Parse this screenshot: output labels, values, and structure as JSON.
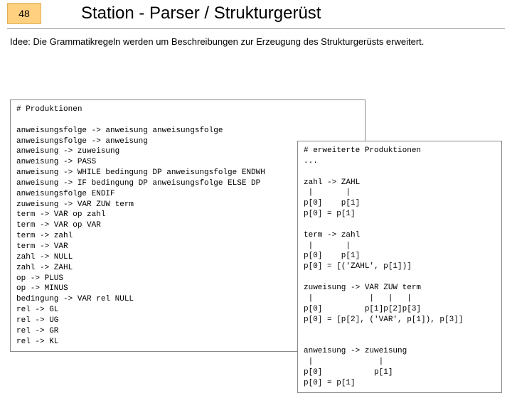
{
  "slide_number": "48",
  "title": "Station - Parser / Strukturgerüst",
  "intro": "Idee: Die Grammatikregeln werden um Beschreibungen zur Erzeugung des Strukturgerüsts erweitert.",
  "left_code": "# Produktionen\n\nanweisungsfolge -> anweisung anweisungsfolge\nanweisungsfolge -> anweisung\nanweisung -> zuweisung\nanweisung -> PASS\nanweisung -> WHILE bedingung DP anweisungsfolge ENDWH\nanweisung -> IF bedingung DP anweisungsfolge ELSE DP\nanweisungsfolge ENDIF\nzuweisung -> VAR ZUW term\nterm -> VAR op zahl\nterm -> VAR op VAR\nterm -> zahl\nterm -> VAR\nzahl -> NULL\nzahl -> ZAHL\nop -> PLUS\nop -> MINUS\nbedingung -> VAR rel NULL\nrel -> GL\nrel -> UG\nrel -> GR\nrel -> KL",
  "right_code": "# erweiterte Produktionen\n...\n\nzahl -> ZAHL\n |       |\np[0]    p[1]\np[0] = p[1]\n\nterm -> zahl\n |       |\np[0]    p[1]\np[0] = [('ZAHL', p[1])]\n\nzuweisung -> VAR ZUW term\n |            |   |   |\np[0]         p[1]p[2]p[3]\np[0] = [p[2], ('VAR', p[1]), p[3]]\n\n\nanweisung -> zuweisung\n |              |\np[0]           p[1]\np[0] = p[1]"
}
